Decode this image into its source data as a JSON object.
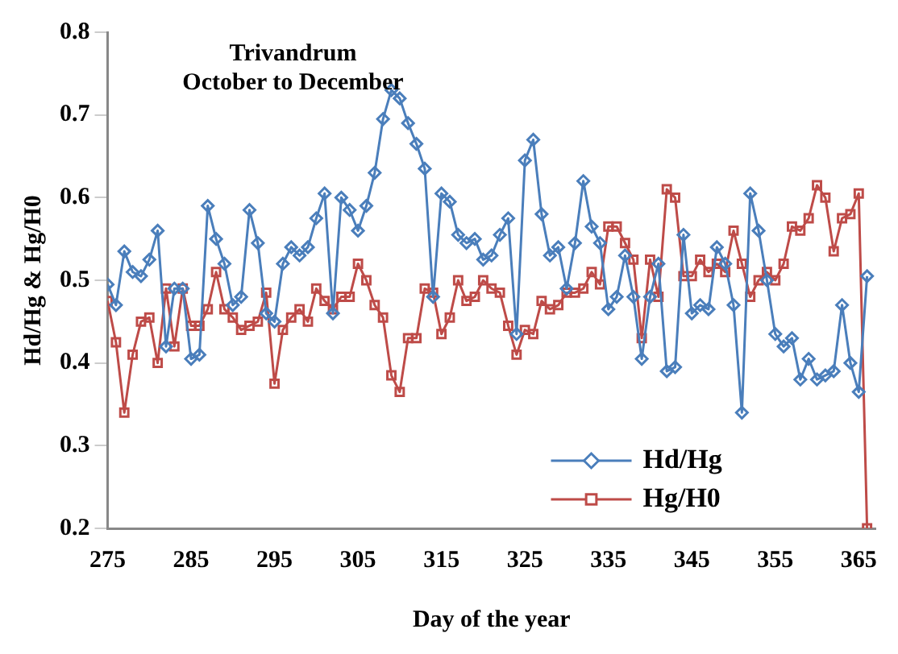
{
  "chart_data": {
    "type": "line",
    "title": "Trivandrum",
    "subtitle": "October to December",
    "xlabel": "Day of the year",
    "ylabel": "Hd/Hg & Hg/H0",
    "x": [
      275,
      276,
      277,
      278,
      279,
      280,
      281,
      282,
      283,
      284,
      285,
      286,
      287,
      288,
      289,
      290,
      291,
      292,
      293,
      294,
      295,
      296,
      297,
      298,
      299,
      300,
      301,
      302,
      303,
      304,
      305,
      306,
      307,
      308,
      309,
      310,
      311,
      312,
      313,
      314,
      315,
      316,
      317,
      318,
      319,
      320,
      321,
      322,
      323,
      324,
      325,
      326,
      327,
      328,
      329,
      330,
      331,
      332,
      333,
      334,
      335,
      336,
      337,
      338,
      339,
      340,
      341,
      342,
      343,
      344,
      345,
      346,
      347,
      348,
      349,
      350,
      351,
      352,
      353,
      354,
      355,
      356,
      357,
      358,
      359,
      360,
      361,
      362,
      363,
      364,
      365,
      366
    ],
    "series": [
      {
        "name": "Hd/Hg",
        "color": "#4a7ebb",
        "marker": "diamond",
        "values": [
          0.495,
          0.47,
          0.535,
          0.51,
          0.505,
          0.525,
          0.56,
          0.42,
          0.49,
          0.49,
          0.405,
          0.41,
          0.59,
          0.55,
          0.52,
          0.47,
          0.48,
          0.585,
          0.545,
          0.46,
          0.45,
          0.52,
          0.54,
          0.53,
          0.54,
          0.575,
          0.605,
          0.46,
          0.6,
          0.585,
          0.56,
          0.59,
          0.63,
          0.695,
          0.73,
          0.72,
          0.69,
          0.665,
          0.635,
          0.48,
          0.605,
          0.595,
          0.555,
          0.545,
          0.55,
          0.525,
          0.53,
          0.555,
          0.575,
          0.435,
          0.645,
          0.67,
          0.58,
          0.53,
          0.54,
          0.49,
          0.545,
          0.62,
          0.565,
          0.545,
          0.465,
          0.48,
          0.53,
          0.48,
          0.405,
          0.48,
          0.52,
          0.39,
          0.395,
          0.555,
          0.46,
          0.47,
          0.465,
          0.54,
          0.52,
          0.47,
          0.34,
          0.605,
          0.56,
          0.5,
          0.435,
          0.42,
          0.43,
          0.38,
          0.405,
          0.38,
          0.385,
          0.39,
          0.47,
          0.4,
          0.365,
          0.505
        ]
      },
      {
        "name": "Hg/H0",
        "color": "#be4b48",
        "marker": "square",
        "values": [
          0.475,
          0.425,
          0.34,
          0.41,
          0.45,
          0.455,
          0.4,
          0.49,
          0.42,
          0.49,
          0.445,
          0.445,
          0.465,
          0.51,
          0.465,
          0.455,
          0.44,
          0.445,
          0.45,
          0.485,
          0.375,
          0.44,
          0.455,
          0.465,
          0.45,
          0.49,
          0.475,
          0.465,
          0.48,
          0.48,
          0.52,
          0.5,
          0.47,
          0.455,
          0.385,
          0.365,
          0.43,
          0.43,
          0.49,
          0.485,
          0.435,
          0.455,
          0.5,
          0.475,
          0.48,
          0.5,
          0.49,
          0.485,
          0.445,
          0.41,
          0.44,
          0.435,
          0.475,
          0.465,
          0.47,
          0.485,
          0.485,
          0.49,
          0.51,
          0.495,
          0.565,
          0.565,
          0.545,
          0.525,
          0.43,
          0.525,
          0.48,
          0.61,
          0.6,
          0.505,
          0.505,
          0.525,
          0.51,
          0.52,
          0.51,
          0.56,
          0.52,
          0.48,
          0.5,
          0.51,
          0.5,
          0.52,
          0.565,
          0.56,
          0.575,
          0.615,
          0.6,
          0.535,
          0.575,
          0.58,
          0.605,
          0.2
        ]
      }
    ],
    "xlim": [
      275,
      367
    ],
    "xticks": [
      275,
      285,
      295,
      305,
      315,
      325,
      335,
      345,
      355,
      365
    ],
    "ylim": [
      0.2,
      0.8
    ],
    "yticks": [
      0.2,
      0.3,
      0.4,
      0.5,
      0.6,
      0.7,
      0.8
    ],
    "grid": false,
    "legend": "bottom right"
  }
}
